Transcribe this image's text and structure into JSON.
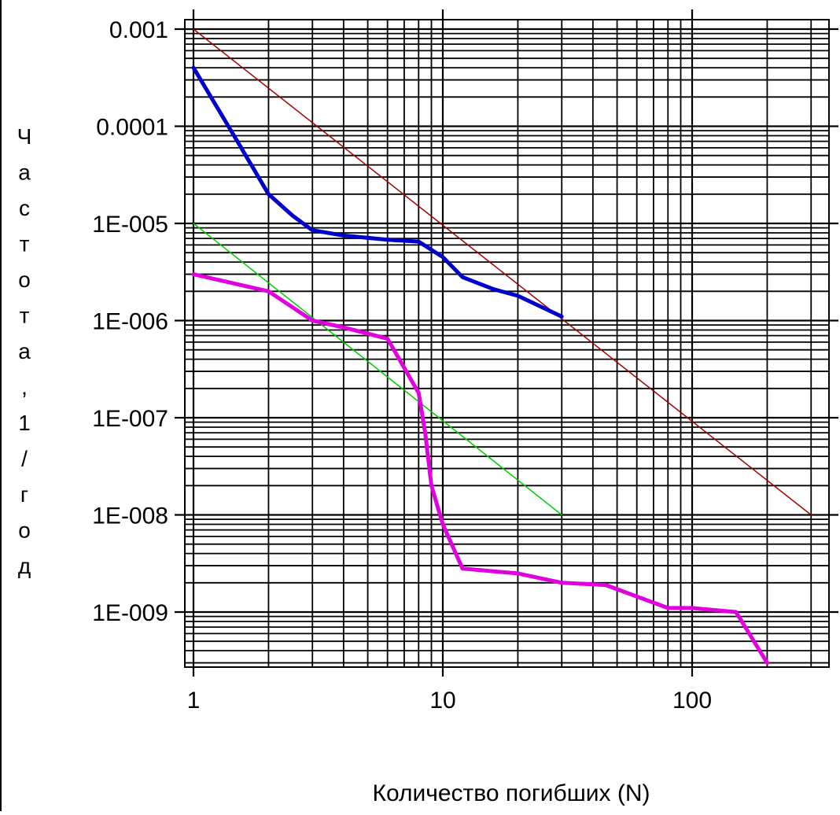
{
  "chart_data": {
    "type": "line",
    "title": "",
    "xlabel": "Количество погибших (N)",
    "ylabel": "Частота , 1/год",
    "x_scale": "log",
    "y_scale": "log",
    "xlim": [
      1,
      300
    ],
    "ylim": [
      1e-10,
      0.001
    ],
    "grid": true,
    "x_ticks": [
      1,
      10,
      100
    ],
    "x_tick_labels": [
      "1",
      "10",
      "100"
    ],
    "y_ticks": [
      0.001,
      0.0001,
      1e-05,
      1e-06,
      1e-07,
      1e-08,
      1e-09
    ],
    "y_tick_labels": [
      "0.001",
      "0.0001",
      "1E-005",
      "1E-006",
      "1E-007",
      "1E-008",
      "1E-009"
    ],
    "ylabel_chars": [
      "Ч",
      "а",
      "с",
      "т",
      "о",
      "т",
      "а",
      ",",
      "1",
      "/",
      "г",
      "о",
      "д"
    ],
    "series": [
      {
        "color": "#a00000",
        "width": 1.5,
        "x": [
          1,
          300
        ],
        "y": [
          0.001,
          1e-08
        ]
      },
      {
        "color": "#00cc00",
        "width": 1.5,
        "x": [
          1,
          30
        ],
        "y": [
          1e-05,
          1e-08
        ]
      },
      {
        "color": "#0000cc",
        "width": 5,
        "x": [
          1,
          1.5,
          2,
          2.5,
          3,
          4,
          6,
          8,
          10,
          12,
          16,
          20,
          30
        ],
        "y": [
          0.0004,
          7e-05,
          2e-05,
          1.2e-05,
          8.5e-06,
          7.5e-06,
          6.8e-06,
          6.5e-06,
          4.5e-06,
          2.8e-06,
          2.1e-06,
          1.8e-06,
          1.1e-06
        ]
      },
      {
        "color": "#e000e0",
        "width": 5,
        "x": [
          1,
          2,
          3,
          4,
          6,
          8,
          8.5,
          9,
          10,
          12,
          20,
          30,
          45,
          80,
          100,
          150,
          200
        ],
        "y": [
          3e-06,
          2e-06,
          1e-06,
          8.5e-07,
          6.5e-07,
          1.8e-07,
          7e-08,
          2e-08,
          8e-09,
          2.8e-09,
          2.5e-09,
          2e-09,
          1.9e-09,
          1.1e-09,
          1.1e-09,
          1e-09,
          3e-10
        ]
      }
    ]
  }
}
